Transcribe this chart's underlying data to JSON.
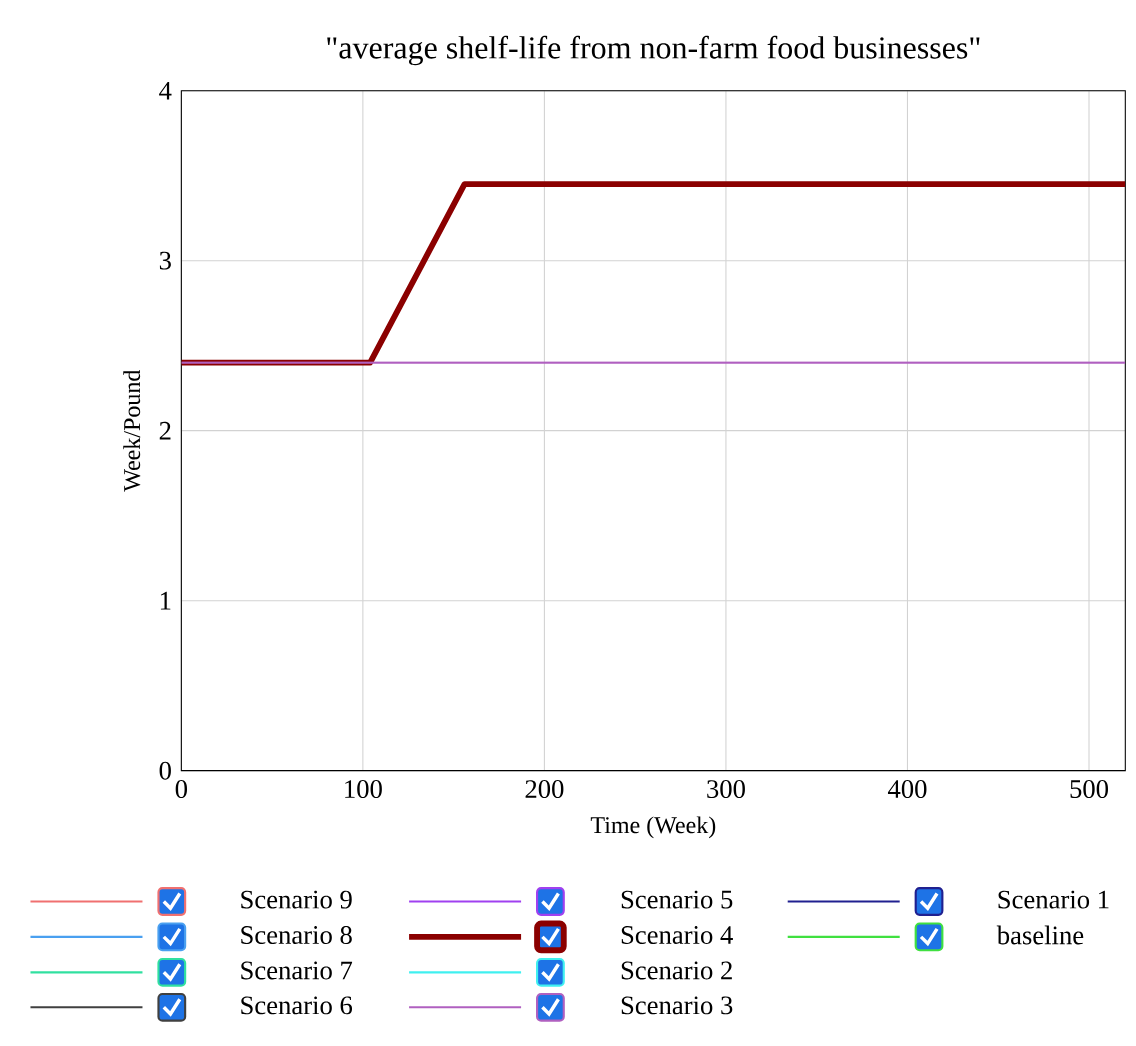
{
  "chart_data": {
    "type": "line",
    "title": "\"average shelf-life from non-farm food businesses\"",
    "xlabel": "Time (Week)",
    "ylabel": "Week/Pound",
    "x": [
      0,
      104,
      156,
      520
    ],
    "xlim": [
      0,
      520
    ],
    "ylim": [
      0,
      4
    ],
    "xticks": [
      0,
      100,
      200,
      300,
      400,
      500
    ],
    "yticks": [
      0,
      1,
      2,
      3,
      4
    ],
    "grid": true,
    "legend": "bottom",
    "series": [
      {
        "name": "Scenario 9",
        "color": "#f07070",
        "values": [
          null,
          null,
          null,
          null
        ]
      },
      {
        "name": "Scenario 8",
        "color": "#4aa0f0",
        "values": [
          null,
          null,
          null,
          null
        ]
      },
      {
        "name": "Scenario 7",
        "color": "#30e0a0",
        "values": [
          null,
          null,
          null,
          null
        ]
      },
      {
        "name": "Scenario 6",
        "color": "#404040",
        "values": [
          null,
          null,
          null,
          null
        ]
      },
      {
        "name": "Scenario 5",
        "color": "#a040f0",
        "values": [
          null,
          null,
          null,
          null
        ]
      },
      {
        "name": "Scenario 4",
        "color": "#8b0000",
        "values": [
          2.4,
          2.4,
          3.45,
          3.45
        ]
      },
      {
        "name": "Scenario 2",
        "color": "#40f0f0",
        "values": [
          null,
          null,
          null,
          null
        ]
      },
      {
        "name": "Scenario 3",
        "color": "#b060c0",
        "values": [
          2.4,
          2.4,
          2.4,
          2.4
        ]
      },
      {
        "name": "Scenario 1",
        "color": "#202090",
        "values": [
          null,
          null,
          null,
          null
        ]
      },
      {
        "name": "baseline",
        "color": "#40e040",
        "values": [
          null,
          null,
          null,
          null
        ]
      }
    ]
  }
}
